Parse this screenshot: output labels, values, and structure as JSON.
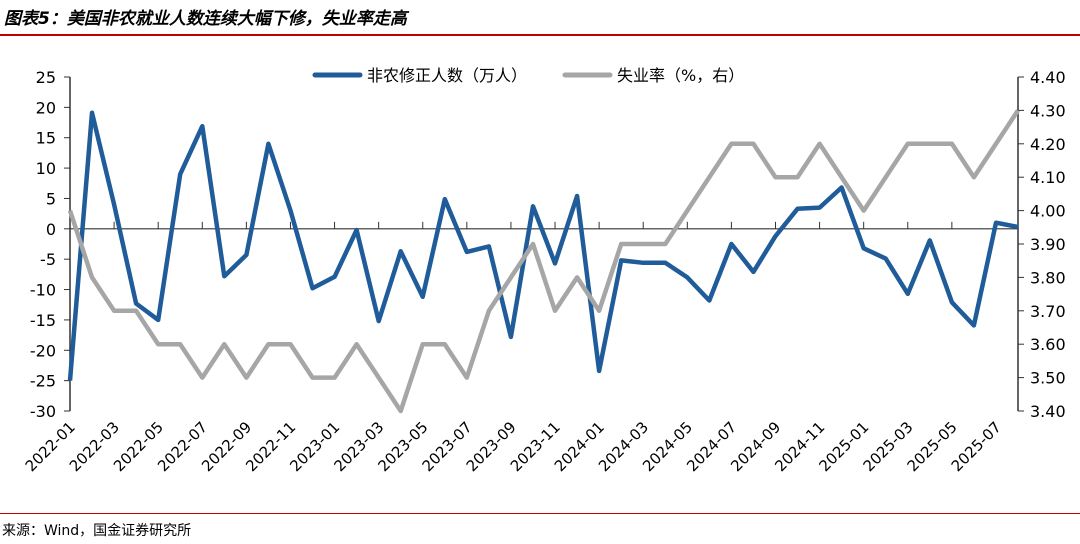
{
  "title": "图表5：美国非农就业人数连续大幅下修，失业率走高",
  "source": "来源：Wind，国金证券研究所",
  "chart_data": {
    "type": "line",
    "title": "图表5：美国非农就业人数连续大幅下修，失业率走高",
    "x": [
      "2022-01",
      "2022-02",
      "2022-03",
      "2022-04",
      "2022-05",
      "2022-06",
      "2022-07",
      "2022-08",
      "2022-09",
      "2022-10",
      "2022-11",
      "2022-12",
      "2023-01",
      "2023-02",
      "2023-03",
      "2023-04",
      "2023-05",
      "2023-06",
      "2023-07",
      "2023-08",
      "2023-09",
      "2023-10",
      "2023-11",
      "2023-12",
      "2024-01",
      "2024-02",
      "2024-03",
      "2024-04",
      "2024-05",
      "2024-06",
      "2024-07",
      "2024-08",
      "2024-09",
      "2024-10",
      "2024-11",
      "2024-12",
      "2025-01",
      "2025-02",
      "2025-03",
      "2025-04",
      "2025-05",
      "2025-06",
      "2025-07",
      "2025-08"
    ],
    "x_tick_labels": [
      "2022-01",
      "2022-03",
      "2022-05",
      "2022-07",
      "2022-09",
      "2022-11",
      "2023-01",
      "2023-03",
      "2023-05",
      "2023-07",
      "2023-09",
      "2023-11",
      "2024-01",
      "2024-03",
      "2024-05",
      "2024-07",
      "2024-09",
      "2024-11",
      "2025-01",
      "2025-03",
      "2025-05",
      "2025-07"
    ],
    "series": [
      {
        "name": "非农修正人数（万人）",
        "axis": "left",
        "color": "#1f5c99",
        "values": [
          -25,
          19.1,
          4,
          -12.3,
          -15,
          9,
          16.9,
          -7.8,
          -4.3,
          14,
          3,
          -9.8,
          -7.9,
          -0.2,
          -15.2,
          -3.7,
          -11.2,
          4.9,
          -3.8,
          -2.9,
          -17.8,
          3.7,
          -5.7,
          5.4,
          -23.4,
          -5.2,
          -5.6,
          -5.6,
          -8,
          -11.8,
          -2.5,
          -7.1,
          -1.2,
          3.3,
          3.5,
          6.8,
          -3.2,
          -4.9,
          -10.7,
          -1.9,
          -12.1,
          -15.9,
          1,
          0.3
        ]
      },
      {
        "name": "失业率（%，右）",
        "axis": "right",
        "color": "#a6a6a6",
        "values": [
          4.0,
          3.8,
          3.7,
          3.7,
          3.6,
          3.6,
          3.5,
          3.6,
          3.5,
          3.6,
          3.6,
          3.5,
          3.5,
          3.6,
          3.5,
          3.4,
          3.6,
          3.6,
          3.5,
          3.7,
          3.8,
          3.9,
          3.7,
          3.8,
          3.7,
          3.9,
          3.9,
          3.9,
          4.0,
          4.1,
          4.2,
          4.2,
          4.1,
          4.1,
          4.2,
          4.1,
          4.0,
          4.1,
          4.2,
          4.2,
          4.2,
          4.1,
          4.2,
          4.3
        ]
      }
    ],
    "ylim_left": [
      -30,
      25
    ],
    "yticks_left": [
      "25",
      "20",
      "15",
      "10",
      "5",
      "0",
      "-5",
      "-10",
      "-15",
      "-20",
      "-25",
      "-30"
    ],
    "ylim_right": [
      3.4,
      4.4
    ],
    "yticks_right": [
      "4.40",
      "4.30",
      "4.20",
      "4.10",
      "4.00",
      "3.90",
      "3.80",
      "3.70",
      "3.60",
      "3.50",
      "3.40"
    ],
    "legend_placement": "top",
    "grid": false
  }
}
